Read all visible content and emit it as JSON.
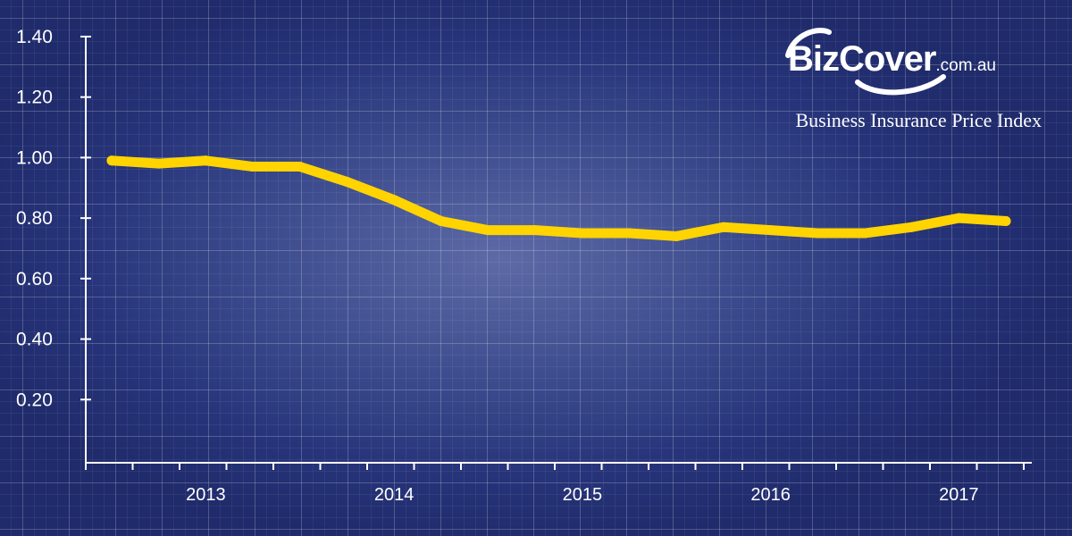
{
  "brand": {
    "logo_text": "BizCover",
    "logo_domain": ".com.au",
    "subtitle": "Business Insurance Price Index"
  },
  "colors": {
    "line": "#ffd400",
    "axis": "#ffffff",
    "background": "#2b3a80"
  },
  "chart_data": {
    "type": "line",
    "title": "Business Insurance Price Index",
    "xlabel": "",
    "ylabel": "",
    "ylim": [
      0,
      1.4
    ],
    "yticks": [
      "0.20",
      "0.40",
      "0.60",
      "0.80",
      "1.00",
      "1.20",
      "1.40"
    ],
    "xticks": [
      "2013",
      "2014",
      "2015",
      "2016",
      "2017"
    ],
    "x": [
      "2012-07",
      "2012-10",
      "2013-01",
      "2013-04",
      "2013-07",
      "2013-10",
      "2014-01",
      "2014-04",
      "2014-07",
      "2014-10",
      "2015-01",
      "2015-04",
      "2015-07",
      "2015-10",
      "2016-01",
      "2016-04",
      "2016-07",
      "2016-10",
      "2017-01",
      "2017-04"
    ],
    "series": [
      {
        "values": [
          0.99,
          0.98,
          0.99,
          0.97,
          0.97,
          0.92,
          0.86,
          0.79,
          0.76,
          0.76,
          0.75,
          0.75,
          0.74,
          0.77,
          0.76,
          0.75,
          0.75,
          0.77,
          0.8,
          0.79
        ]
      }
    ],
    "grid": true
  }
}
